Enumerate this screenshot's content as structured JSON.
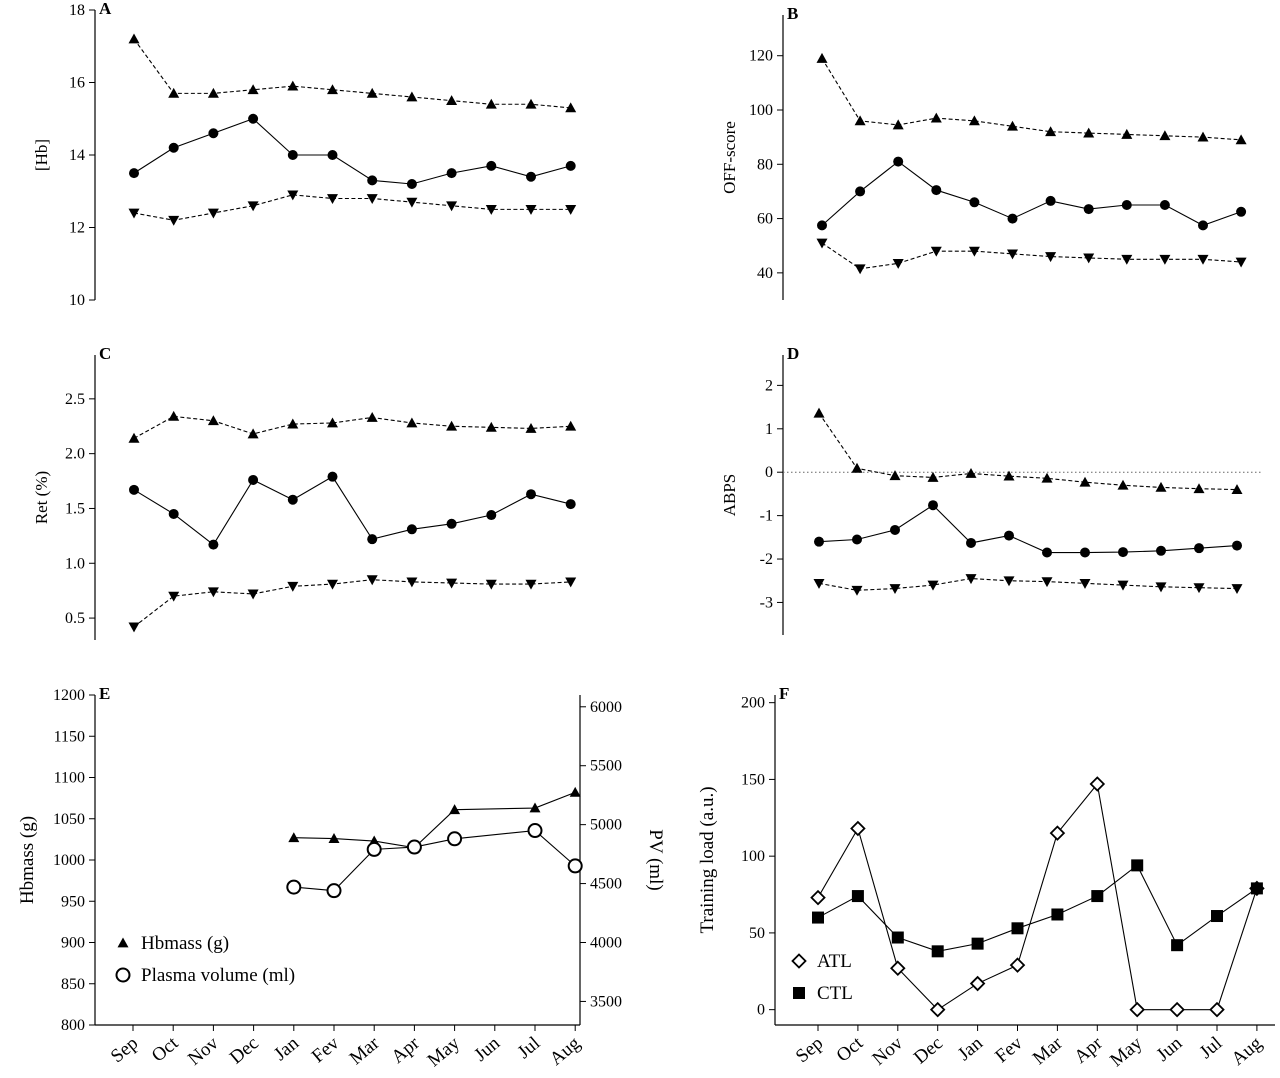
{
  "months": [
    "Sep",
    "Oct",
    "Nov",
    "Dec",
    "Jan",
    "Fev",
    "Mar",
    "Apr",
    "May",
    "Jun",
    "Jul",
    "Aug"
  ],
  "chart_data": [
    {
      "id": "A",
      "type": "line",
      "panel_label": "A",
      "ylabel": "[Hb]",
      "ylim": [
        10,
        18
      ],
      "yticks": [
        10,
        12,
        14,
        16,
        18
      ],
      "ytick_labels": [
        "10",
        "12",
        "14",
        "16",
        "18"
      ],
      "grid": false,
      "series": [
        {
          "role": "upper",
          "marker": "triangle-up",
          "style": "dashed",
          "values": [
            17.2,
            15.7,
            15.7,
            15.8,
            15.9,
            15.8,
            15.7,
            15.6,
            15.5,
            15.4,
            15.4,
            15.3
          ]
        },
        {
          "role": "value",
          "marker": "circle-filled",
          "style": "solid",
          "values": [
            13.5,
            14.2,
            14.6,
            15.0,
            14.0,
            14.0,
            13.3,
            13.2,
            13.5,
            13.7,
            13.4,
            13.7
          ]
        },
        {
          "role": "lower",
          "marker": "triangle-down",
          "style": "dashed",
          "values": [
            12.4,
            12.2,
            12.4,
            12.6,
            12.9,
            12.8,
            12.8,
            12.7,
            12.6,
            12.5,
            12.5,
            12.5
          ]
        }
      ]
    },
    {
      "id": "B",
      "type": "line",
      "panel_label": "B",
      "ylabel": "OFF-score",
      "ylim": [
        30,
        135
      ],
      "yticks": [
        40,
        60,
        80,
        100,
        120
      ],
      "ytick_labels": [
        "40",
        "60",
        "80",
        "100",
        "120"
      ],
      "grid": false,
      "series": [
        {
          "role": "upper",
          "marker": "triangle-up",
          "style": "dashed",
          "values": [
            119,
            96,
            94.5,
            97,
            96,
            94,
            92,
            91.5,
            91,
            90.5,
            90,
            89
          ]
        },
        {
          "role": "value",
          "marker": "circle-filled",
          "style": "solid",
          "values": [
            57.5,
            70,
            81,
            70.5,
            66,
            60,
            66.5,
            63.5,
            65,
            65,
            57.5,
            62.5
          ]
        },
        {
          "role": "lower",
          "marker": "triangle-down",
          "style": "dashed",
          "values": [
            51,
            41.5,
            43.5,
            48,
            48,
            47,
            46,
            45.5,
            45,
            45,
            45,
            44
          ]
        }
      ]
    },
    {
      "id": "C",
      "type": "line",
      "panel_label": "C",
      "ylabel": "Ret (%)",
      "ylim": [
        0.3,
        2.9
      ],
      "yticks": [
        0.5,
        1.0,
        1.5,
        2.0,
        2.5
      ],
      "ytick_labels": [
        "0.5",
        "1.0",
        "1.5",
        "2.0",
        "2.5"
      ],
      "grid": false,
      "series": [
        {
          "role": "upper",
          "marker": "triangle-up",
          "style": "dashed",
          "values": [
            2.14,
            2.34,
            2.3,
            2.18,
            2.27,
            2.28,
            2.33,
            2.28,
            2.25,
            2.24,
            2.23,
            2.25
          ]
        },
        {
          "role": "value",
          "marker": "circle-filled",
          "style": "solid",
          "values": [
            1.67,
            1.45,
            1.17,
            1.76,
            1.58,
            1.79,
            1.22,
            1.31,
            1.36,
            1.44,
            1.63,
            1.54
          ]
        },
        {
          "role": "lower",
          "marker": "triangle-down",
          "style": "dashed",
          "values": [
            0.42,
            0.7,
            0.74,
            0.72,
            0.79,
            0.81,
            0.85,
            0.83,
            0.82,
            0.81,
            0.81,
            0.83
          ]
        }
      ]
    },
    {
      "id": "D",
      "type": "line",
      "panel_label": "D",
      "ylabel": "ABPS",
      "ylim": [
        -3.75,
        2.7
      ],
      "yticks": [
        -3,
        -2,
        -1,
        0,
        1,
        2
      ],
      "ytick_labels": [
        "-3",
        "-2",
        "-1",
        "0",
        "1",
        "2"
      ],
      "grid": false,
      "reference_line": 0,
      "series": [
        {
          "role": "upper",
          "marker": "triangle-up",
          "style": "dashed",
          "values": [
            1.36,
            0.09,
            -0.08,
            -0.12,
            -0.03,
            -0.09,
            -0.14,
            -0.23,
            -0.3,
            -0.35,
            -0.38,
            -0.4
          ]
        },
        {
          "role": "value",
          "marker": "circle-filled",
          "style": "solid",
          "values": [
            -1.6,
            -1.55,
            -1.33,
            -0.76,
            -1.63,
            -1.46,
            -1.85,
            -1.85,
            -1.84,
            -1.81,
            -1.75,
            -1.69
          ]
        },
        {
          "role": "lower",
          "marker": "triangle-down",
          "style": "dashed",
          "values": [
            -2.56,
            -2.72,
            -2.68,
            -2.6,
            -2.45,
            -2.5,
            -2.52,
            -2.56,
            -2.6,
            -2.64,
            -2.66,
            -2.68
          ]
        }
      ]
    },
    {
      "id": "E",
      "type": "line",
      "panel_label": "E",
      "ylabel": "Hbmass (g)",
      "ylabel_right": "PV (ml)",
      "ylim": [
        800,
        1200
      ],
      "yticks": [
        800,
        850,
        900,
        950,
        1000,
        1050,
        1100,
        1150,
        1200
      ],
      "ytick_labels": [
        "800",
        "850",
        "900",
        "950",
        "1000",
        "1050",
        "1100",
        "1150",
        "1200"
      ],
      "ylim_right": [
        3300,
        6100
      ],
      "yticks_right": [
        3500,
        4000,
        4500,
        5000,
        5500,
        6000
      ],
      "ytick_labels_right": [
        "3500",
        "4000",
        "4500",
        "5000",
        "5500",
        "6000"
      ],
      "grid": false,
      "legend_position": "bottom-left",
      "series": [
        {
          "name": "Hbmass (g)",
          "axis": "left",
          "marker": "triangle-up",
          "style": "solid",
          "x_index": [
            4,
            5,
            6,
            7,
            8,
            10,
            11
          ],
          "values": [
            1027,
            1026,
            1023,
            1015,
            1061,
            1063,
            1082
          ]
        },
        {
          "name": "Plasma volume (ml)",
          "axis": "right",
          "marker": "circle-open",
          "style": "solid",
          "x_index": [
            4,
            5,
            6,
            7,
            8,
            10,
            11
          ],
          "values": [
            4470,
            4440,
            4790,
            4810,
            4880,
            4950,
            4650
          ]
        }
      ]
    },
    {
      "id": "F",
      "type": "line",
      "panel_label": "F",
      "ylabel": "Training load (a.u.)",
      "ylim": [
        -10,
        205
      ],
      "yticks": [
        0,
        50,
        100,
        150,
        200
      ],
      "ytick_labels": [
        "0",
        "50",
        "100",
        "150",
        "200"
      ],
      "grid": false,
      "legend_position": "bottom-left",
      "series": [
        {
          "name": "ATL",
          "marker": "diamond-open",
          "style": "solid",
          "values": [
            73,
            118,
            27,
            0,
            17,
            29,
            115,
            147,
            0,
            0,
            0,
            79
          ]
        },
        {
          "name": "CTL",
          "marker": "square-filled",
          "style": "solid",
          "values": [
            60,
            74,
            47,
            38,
            43,
            53,
            62,
            74,
            94,
            42,
            61,
            79
          ]
        }
      ]
    }
  ]
}
